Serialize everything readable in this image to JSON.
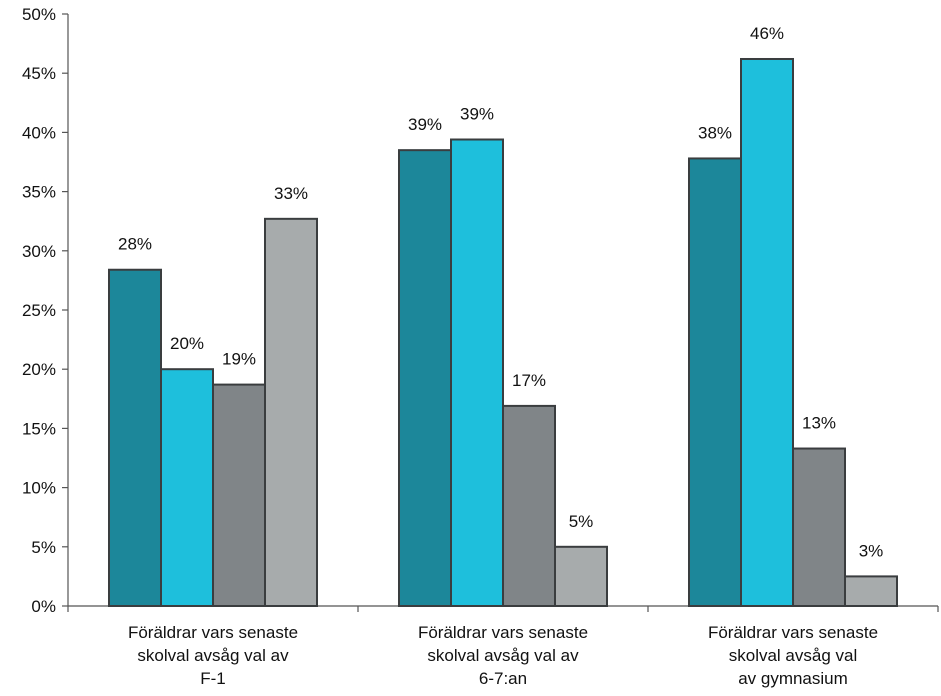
{
  "chart_data": {
    "type": "bar",
    "title": "",
    "xlabel": "",
    "ylabel": "",
    "ylim": [
      0,
      0.5
    ],
    "y_tick_values": [
      0,
      0.05,
      0.1,
      0.15,
      0.2,
      0.25,
      0.3,
      0.35,
      0.4,
      0.45,
      0.5
    ],
    "y_tick_labels": [
      "0%",
      "5%",
      "10%",
      "15%",
      "20%",
      "25%",
      "30%",
      "35%",
      "40%",
      "45%",
      "50%"
    ],
    "grid": false,
    "legend": "none",
    "categories": [
      [
        "Föräldrar vars senaste",
        "skolval avsåg val av",
        "F-1"
      ],
      [
        "Föräldrar vars senaste",
        "skolval avsåg val av",
        "6-7:an"
      ],
      [
        "Föräldrar vars senaste",
        "skolval avsåg val",
        "av gymnasium"
      ]
    ],
    "series": [
      {
        "color": "#1c879a",
        "values": [
          0.284,
          0.385,
          0.378
        ],
        "labels": [
          "28%",
          "39%",
          "38%"
        ]
      },
      {
        "color": "#1ebfdc",
        "values": [
          0.2,
          0.394,
          0.462
        ],
        "labels": [
          "20%",
          "39%",
          "46%"
        ]
      },
      {
        "color": "#808588",
        "values": [
          0.187,
          0.169,
          0.133
        ],
        "labels": [
          "19%",
          "17%",
          "13%"
        ]
      },
      {
        "color": "#a7abac",
        "values": [
          0.327,
          0.05,
          0.025
        ],
        "labels": [
          "33%",
          "5%",
          "3%"
        ]
      }
    ]
  }
}
